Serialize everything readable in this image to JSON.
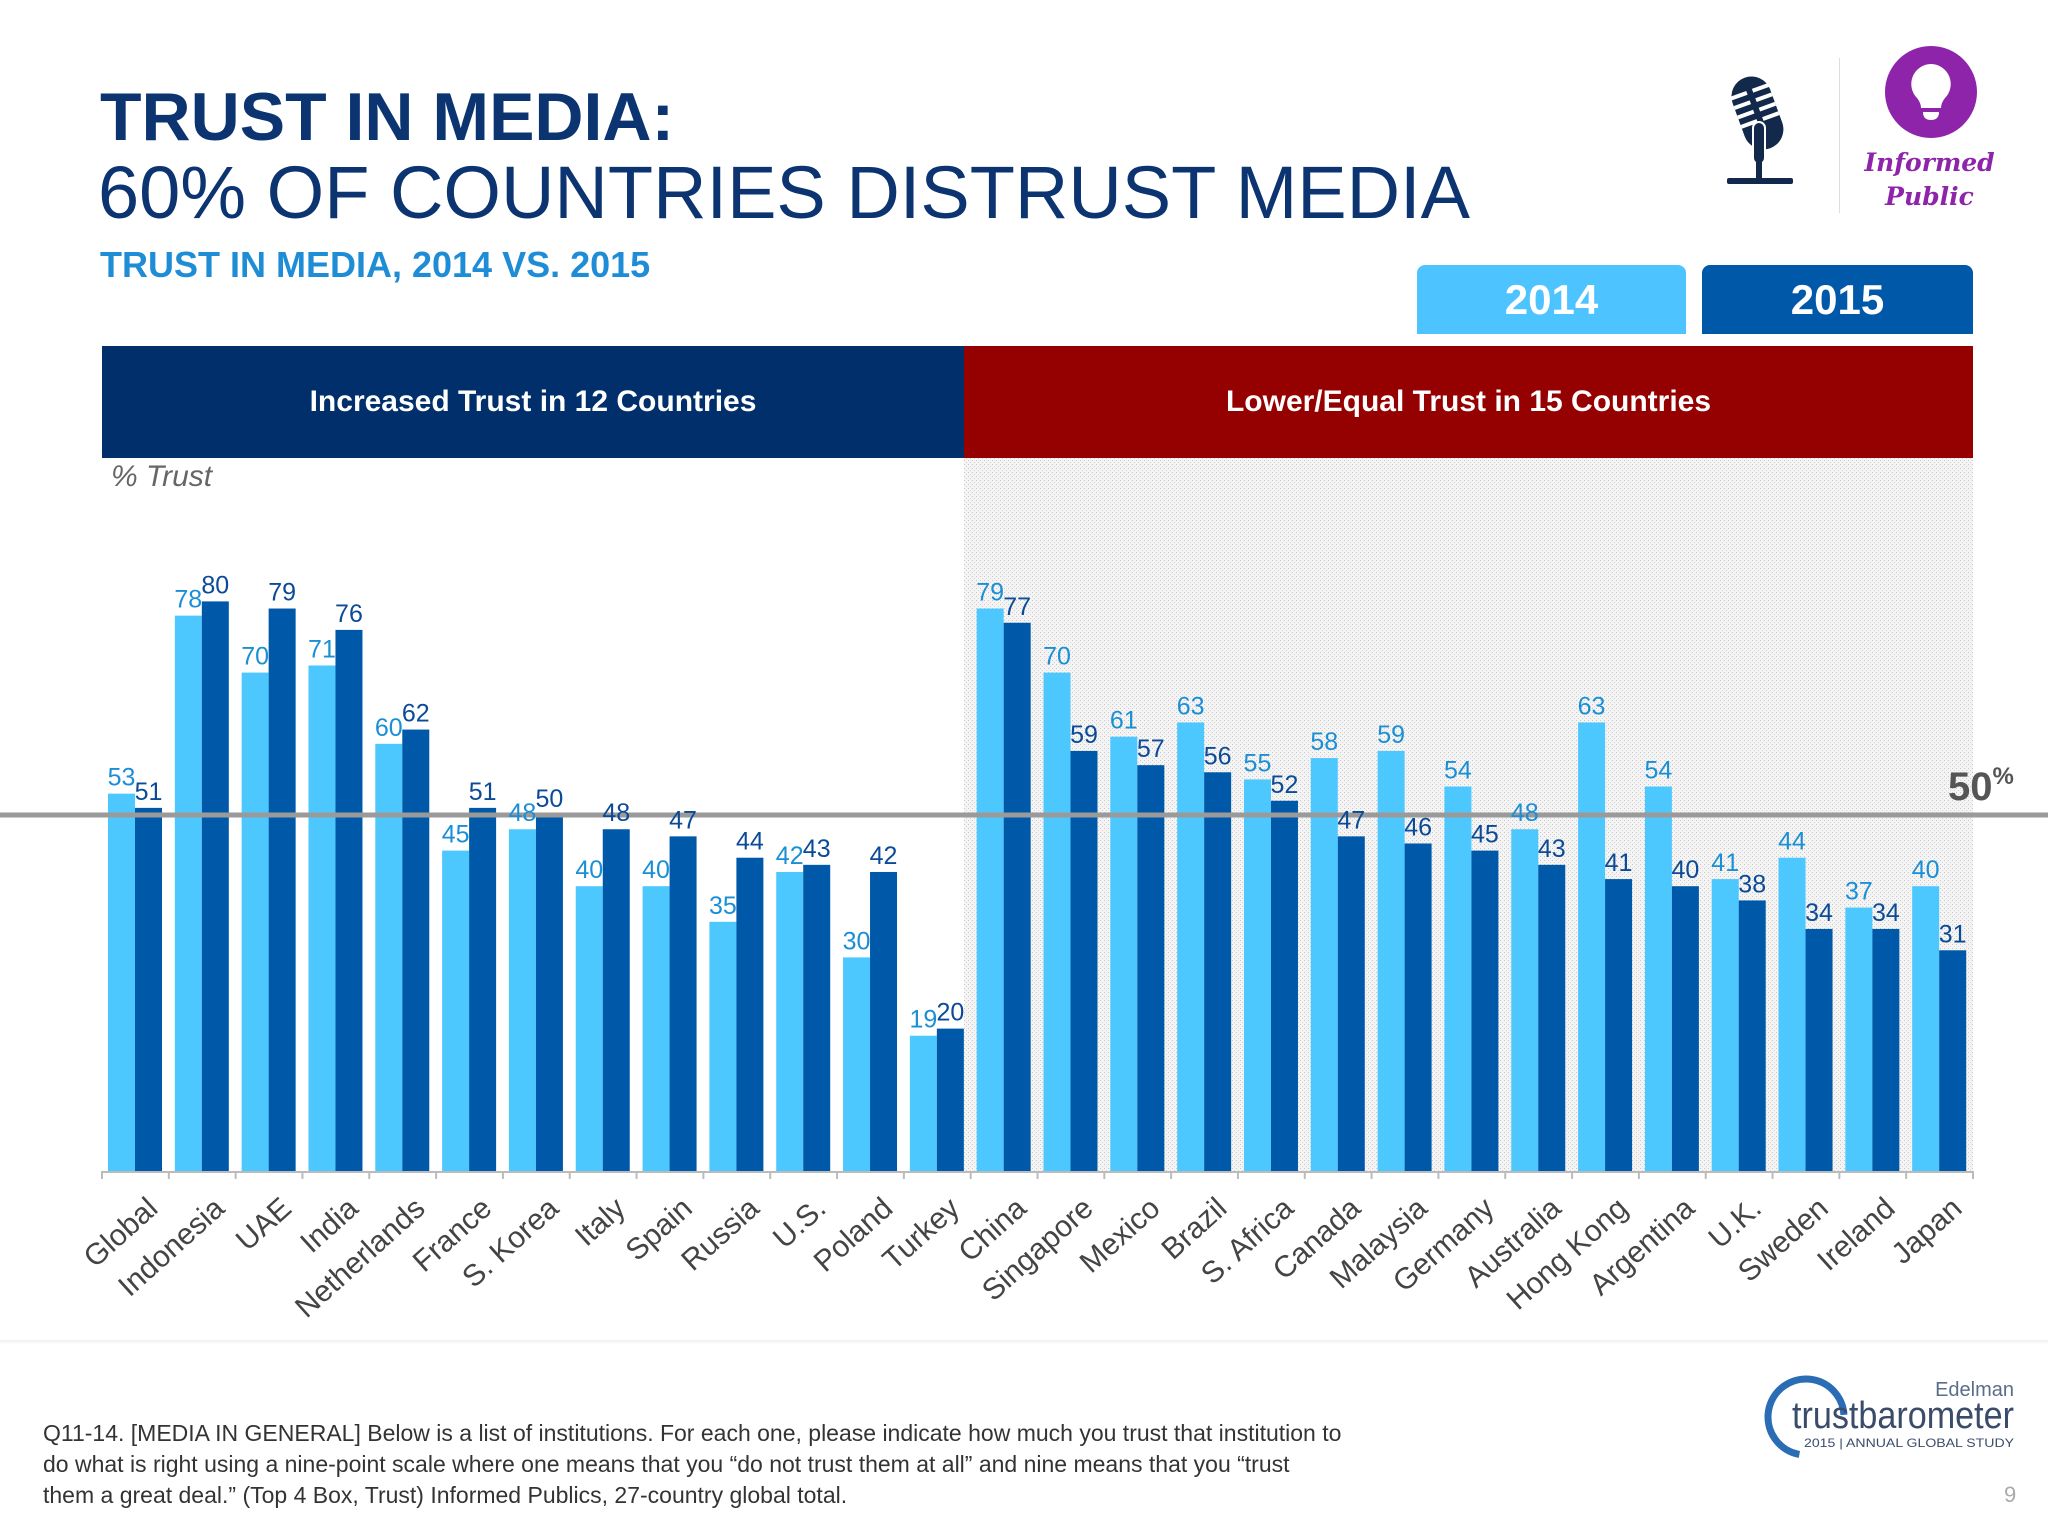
{
  "header": {
    "title_line1": "TRUST IN MEDIA:",
    "title_line2": "60% OF COUNTRIES DISTRUST MEDIA",
    "subtitle": "TRUST IN MEDIA, 2014 VS. 2015"
  },
  "badge": {
    "label_line1": "Informed",
    "label_line2": "Public",
    "color": "#8e24aa",
    "icons": [
      "microphone-icon",
      "lightbulb-icon"
    ]
  },
  "bands": {
    "increased": "Increased Trust in 12 Countries",
    "lower": "Lower/Equal Trust in 15 Countries",
    "increased_color": "#002f6c",
    "lower_color": "#950000"
  },
  "footer": {
    "note": "Q11-14. [MEDIA IN GENERAL] Below is a list of institutions. For each one, please indicate how much you trust that institution to do what is right using a nine-point scale where one means that you “do not trust them at all” and nine means that you “trust them a great deal.” (Top 4 Box, Trust) Informed Publics, 27-country global total.",
    "logo_brand": "Edelman",
    "logo_name": "trustbarometer",
    "logo_tagline": "2015 | ANNUAL GLOBAL STUDY",
    "page_number": "9"
  },
  "chart_data": {
    "type": "bar",
    "ylabel": "% Trust",
    "ylim": [
      0,
      100
    ],
    "reference_line": {
      "value": 50,
      "label": "50",
      "unit": "%"
    },
    "categories": [
      "Global",
      "Indonesia",
      "UAE",
      "India",
      "Netherlands",
      "France",
      "S. Korea",
      "Italy",
      "Spain",
      "Russia",
      "U.S.",
      "Poland",
      "Turkey",
      "China",
      "Singapore",
      "Mexico",
      "Brazil",
      "S. Africa",
      "Canada",
      "Malaysia",
      "Germany",
      "Australia",
      "Hong Kong",
      "Argentina",
      "U.K.",
      "Sweden",
      "Ireland",
      "Japan"
    ],
    "series": [
      {
        "name": "2014",
        "color": "#4dc8ff",
        "label_color": "#1a8fd6",
        "values": [
          53,
          78,
          70,
          71,
          60,
          45,
          48,
          40,
          40,
          35,
          42,
          30,
          19,
          79,
          70,
          61,
          63,
          55,
          58,
          59,
          54,
          48,
          63,
          54,
          41,
          44,
          37,
          40
        ]
      },
      {
        "name": "2015",
        "color": "#0059a8",
        "label_color": "#0b4a96",
        "values": [
          51,
          80,
          79,
          76,
          62,
          51,
          50,
          48,
          47,
          44,
          43,
          42,
          20,
          77,
          59,
          57,
          56,
          52,
          47,
          46,
          45,
          43,
          41,
          40,
          38,
          34,
          34,
          31
        ]
      }
    ],
    "groups": [
      {
        "label": "Increased Trust in 12 Countries",
        "from": "Global",
        "to": "Turkey"
      },
      {
        "label": "Lower/Equal Trust in 15 Countries",
        "from": "China",
        "to": "Japan",
        "shaded": true
      }
    ],
    "legend": "top-right",
    "grid": false
  }
}
